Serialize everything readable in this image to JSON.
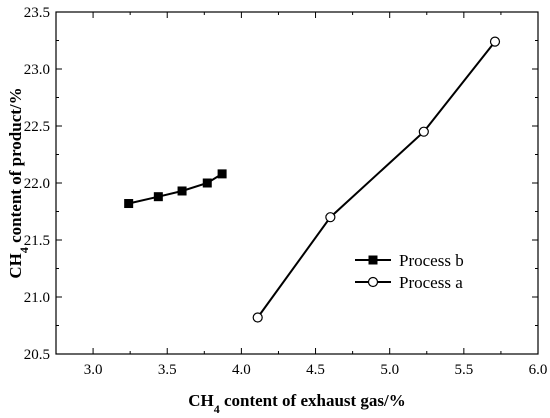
{
  "chart_data": {
    "type": "line",
    "title": "",
    "xlabel": {
      "pre": "CH",
      "sub": "4",
      "post": " content of exhaust gas/%"
    },
    "ylabel": {
      "pre": "CH",
      "sub": "4",
      "post": " content of product/%"
    },
    "xlim": [
      2.75,
      6.0
    ],
    "ylim": [
      20.5,
      23.5
    ],
    "xticks": [
      "3.0",
      "3.5",
      "4.0",
      "4.5",
      "5.0",
      "5.5",
      "6.0"
    ],
    "yticks": [
      "20.5",
      "21.0",
      "21.5",
      "22.0",
      "22.5",
      "23.0",
      "23.5"
    ],
    "grid": false,
    "legend_position": "right-middle",
    "series": [
      {
        "name": "Process b",
        "marker": "filled-square",
        "color": "#000000",
        "x": [
          3.24,
          3.44,
          3.6,
          3.77,
          3.87
        ],
        "y": [
          21.82,
          21.88,
          21.93,
          22.0,
          22.08
        ]
      },
      {
        "name": "Process a",
        "marker": "open-circle",
        "color": "#000000",
        "x": [
          4.11,
          4.6,
          5.23,
          5.71
        ],
        "y": [
          20.82,
          21.7,
          22.45,
          23.24
        ]
      }
    ]
  }
}
